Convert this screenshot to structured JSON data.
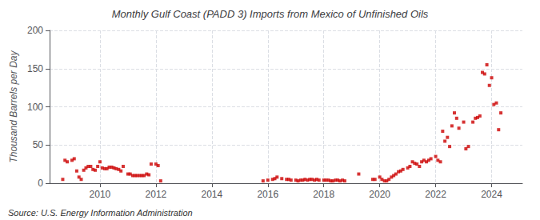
{
  "chart_data": {
    "type": "scatter",
    "title": "Monthly Gulf Coast (PADD 3) Imports from Mexico of Unfinished Oils",
    "ylabel": "Thousand Barrels per Day",
    "annotations": [
      "Source: U.S. Energy Information Administration"
    ],
    "color": "#cc0000",
    "marker": "square",
    "grid": true,
    "xlim": [
      2008.2,
      2025.1
    ],
    "xticks": [
      2010,
      2012,
      2014,
      2016,
      2018,
      2020,
      2022,
      2024
    ],
    "ylim": [
      0,
      200
    ],
    "yticks": [
      0,
      50,
      100,
      150,
      200
    ],
    "x": [
      2008.67,
      2008.75,
      2008.83,
      2009.0,
      2009.08,
      2009.17,
      2009.25,
      2009.33,
      2009.42,
      2009.5,
      2009.58,
      2009.67,
      2009.75,
      2009.83,
      2009.92,
      2010.0,
      2010.08,
      2010.17,
      2010.25,
      2010.33,
      2010.42,
      2010.5,
      2010.58,
      2010.67,
      2010.75,
      2010.83,
      2011.0,
      2011.08,
      2011.17,
      2011.25,
      2011.33,
      2011.42,
      2011.5,
      2011.58,
      2011.67,
      2011.75,
      2011.83,
      2012.0,
      2012.08,
      2012.17,
      2015.83,
      2016.0,
      2016.17,
      2016.25,
      2016.33,
      2016.5,
      2016.67,
      2016.75,
      2016.83,
      2017.0,
      2017.08,
      2017.17,
      2017.25,
      2017.33,
      2017.42,
      2017.5,
      2017.58,
      2017.67,
      2017.75,
      2017.83,
      2018.0,
      2018.08,
      2018.17,
      2018.25,
      2018.33,
      2018.42,
      2018.5,
      2018.58,
      2018.67,
      2018.75,
      2019.25,
      2019.75,
      2019.83,
      2020.0,
      2020.08,
      2020.17,
      2020.25,
      2020.33,
      2020.42,
      2020.5,
      2020.58,
      2020.67,
      2020.75,
      2020.83,
      2021.0,
      2021.08,
      2021.17,
      2021.25,
      2021.33,
      2021.42,
      2021.5,
      2021.58,
      2021.67,
      2021.75,
      2021.83,
      2022.0,
      2022.08,
      2022.17,
      2022.25,
      2022.33,
      2022.42,
      2022.5,
      2022.58,
      2022.67,
      2022.75,
      2022.83,
      2023.0,
      2023.08,
      2023.17,
      2023.33,
      2023.42,
      2023.5,
      2023.58,
      2023.67,
      2023.75,
      2023.83,
      2023.92,
      2024.0,
      2024.08,
      2024.17,
      2024.25,
      2024.33
    ],
    "values": [
      5,
      30,
      28,
      30,
      32,
      16,
      8,
      5,
      17,
      20,
      22,
      22,
      18,
      17,
      22,
      28,
      20,
      19,
      19,
      21,
      21,
      20,
      19,
      18,
      16,
      22,
      12,
      12,
      10,
      10,
      10,
      10,
      10,
      10,
      12,
      11,
      25,
      25,
      23,
      3,
      3,
      4,
      5,
      6,
      8,
      6,
      5,
      5,
      4,
      4,
      3,
      4,
      4,
      5,
      4,
      5,
      5,
      4,
      5,
      4,
      4,
      4,
      4,
      3,
      3,
      4,
      4,
      3,
      4,
      3,
      12,
      5,
      5,
      8,
      5,
      3,
      3,
      5,
      8,
      10,
      12,
      15,
      16,
      18,
      20,
      22,
      28,
      26,
      25,
      22,
      28,
      30,
      28,
      30,
      32,
      35,
      30,
      28,
      68,
      55,
      60,
      48,
      75,
      92,
      85,
      72,
      80,
      45,
      48,
      80,
      85,
      86,
      88,
      145,
      143,
      155,
      128,
      138,
      103,
      105,
      70,
      92
    ]
  }
}
